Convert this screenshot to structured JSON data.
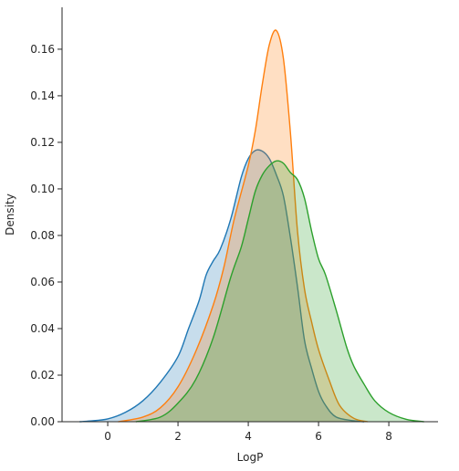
{
  "chart_data": {
    "type": "area",
    "title": "",
    "xlabel": "LogP",
    "ylabel": "Density",
    "xlim": [
      -1.3,
      9.4
    ],
    "ylim": [
      0,
      0.178
    ],
    "xticks": [
      0,
      2,
      4,
      6,
      8
    ],
    "yticks": [
      0.0,
      0.02,
      0.04,
      0.06,
      0.08,
      0.1,
      0.12,
      0.14,
      0.16
    ],
    "ytick_labels": [
      "0.00",
      "0.02",
      "0.04",
      "0.06",
      "0.08",
      "0.10",
      "0.12",
      "0.14",
      "0.16"
    ],
    "grid": false,
    "legend": "none",
    "series": [
      {
        "color": "#1f77b4",
        "x": [
          -0.8,
          -0.5,
          0,
          0.5,
          1.0,
          1.5,
          2.0,
          2.3,
          2.6,
          2.8,
          3.0,
          3.2,
          3.5,
          3.8,
          4.0,
          4.2,
          4.4,
          4.6,
          4.8,
          5.0,
          5.2,
          5.4,
          5.6,
          5.8,
          6.0,
          6.2,
          6.5,
          7.0,
          7.3
        ],
        "y": [
          0.0,
          0.0003,
          0.0012,
          0.004,
          0.009,
          0.017,
          0.028,
          0.04,
          0.052,
          0.063,
          0.069,
          0.074,
          0.087,
          0.105,
          0.113,
          0.1165,
          0.1162,
          0.113,
          0.106,
          0.097,
          0.079,
          0.058,
          0.035,
          0.023,
          0.013,
          0.007,
          0.002,
          0.0004,
          0.0
        ]
      },
      {
        "color": "#ff7f0e",
        "x": [
          0.3,
          1.0,
          1.5,
          2.0,
          2.5,
          3.0,
          3.3,
          3.6,
          4.0,
          4.2,
          4.4,
          4.6,
          4.8,
          5.0,
          5.2,
          5.4,
          5.6,
          5.8,
          6.0,
          6.3,
          6.6,
          7.0,
          7.4
        ],
        "y": [
          0.0,
          0.002,
          0.006,
          0.015,
          0.03,
          0.05,
          0.066,
          0.087,
          0.11,
          0.125,
          0.145,
          0.162,
          0.168,
          0.156,
          0.124,
          0.082,
          0.057,
          0.043,
          0.031,
          0.018,
          0.007,
          0.0015,
          0.0
        ]
      },
      {
        "color": "#2ca02c",
        "x": [
          0.8,
          1.5,
          2.0,
          2.5,
          3.0,
          3.5,
          3.8,
          4.0,
          4.2,
          4.4,
          4.6,
          4.8,
          5.0,
          5.2,
          5.4,
          5.6,
          5.8,
          6.0,
          6.2,
          6.5,
          6.8,
          7.0,
          7.3,
          7.6,
          8.0,
          8.5,
          9.0
        ],
        "y": [
          0.0,
          0.002,
          0.008,
          0.018,
          0.036,
          0.062,
          0.075,
          0.087,
          0.099,
          0.106,
          0.11,
          0.112,
          0.111,
          0.107,
          0.104,
          0.096,
          0.082,
          0.07,
          0.063,
          0.048,
          0.032,
          0.024,
          0.016,
          0.009,
          0.004,
          0.001,
          0.0
        ]
      }
    ]
  }
}
